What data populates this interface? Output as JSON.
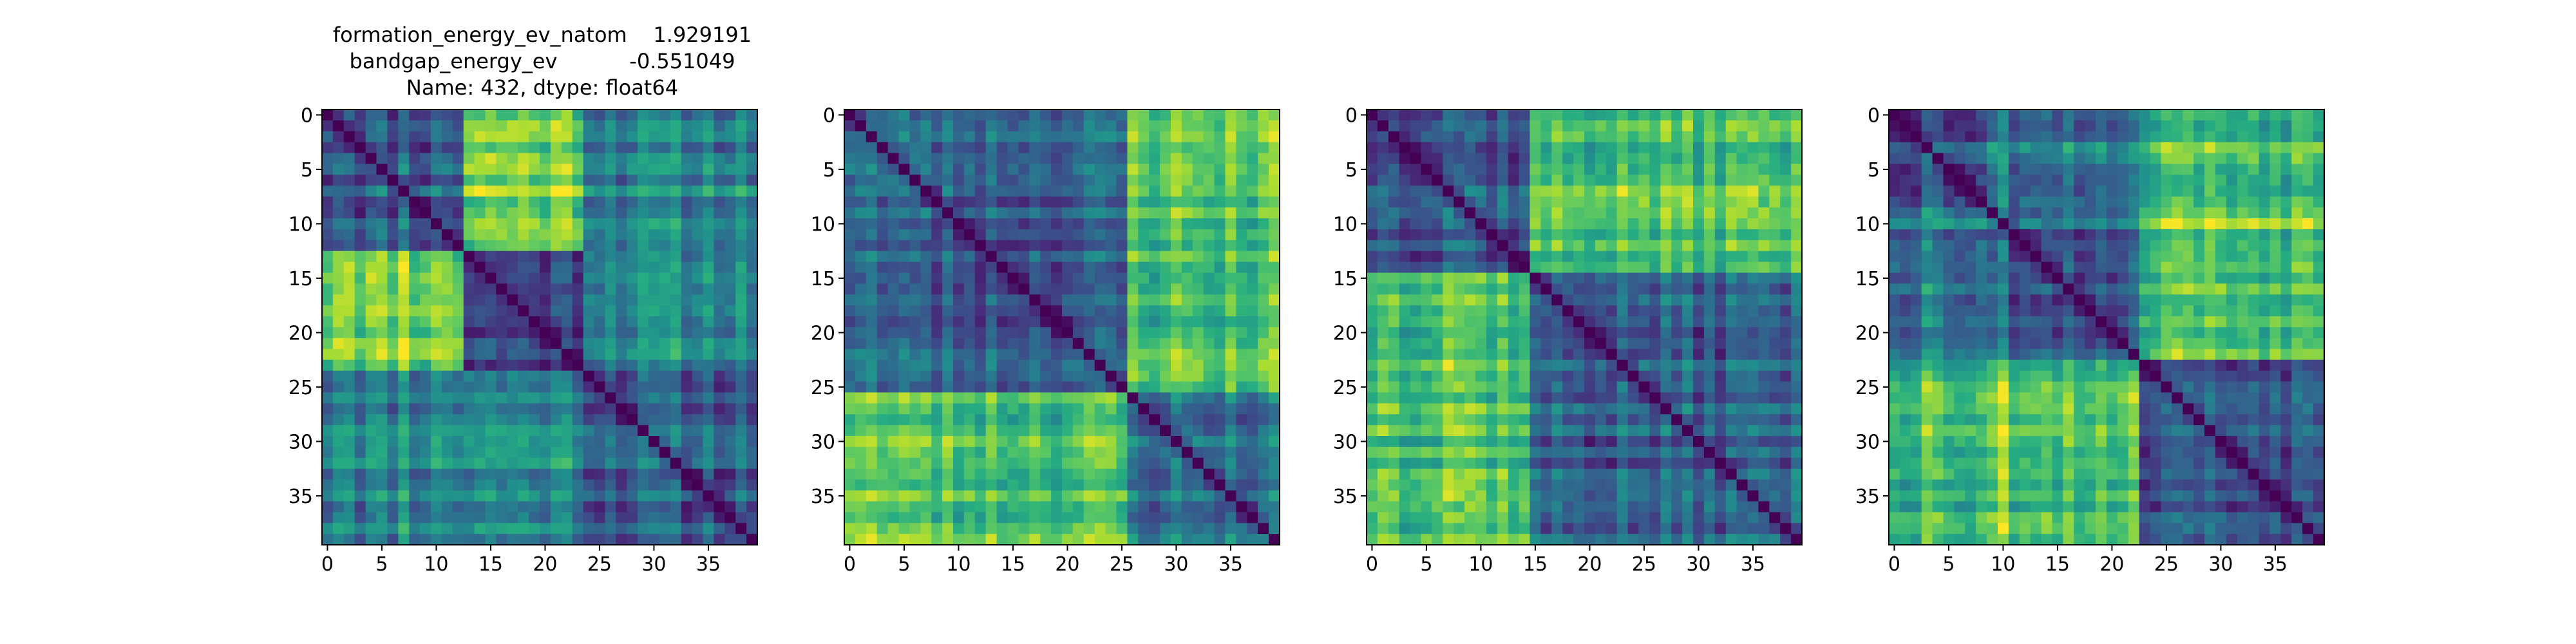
{
  "title_lines": [
    "formation_energy_ev_natom    1.929191",
    "bandgap_energy_ev           -0.551049",
    "Name: 432, dtype: float64"
  ],
  "chart_data": [
    {
      "type": "heatmap",
      "n": 40,
      "colormap": "viridis",
      "xticks": [
        0,
        5,
        10,
        15,
        20,
        25,
        30,
        35
      ],
      "yticks": [
        0,
        5,
        10,
        15,
        20,
        25,
        30,
        35
      ],
      "diagonal": 0,
      "groups": [
        {
          "start": 0,
          "end": 13,
          "level": 0.28
        },
        {
          "start": 13,
          "end": 24,
          "level": 0.22
        },
        {
          "start": 24,
          "end": 40,
          "level": 0.32
        }
      ],
      "cross_levels": [
        [
          0.28,
          0.8,
          0.45
        ],
        [
          0.8,
          0.22,
          0.48
        ],
        [
          0.45,
          0.48,
          0.32
        ]
      ],
      "bright_columns": [
        1,
        2,
        7,
        11
      ],
      "noise_seed": 11
    },
    {
      "type": "heatmap",
      "n": 40,
      "colormap": "viridis",
      "xticks": [
        0,
        5,
        10,
        15,
        20,
        25,
        30,
        35
      ],
      "yticks": [
        0,
        5,
        10,
        15,
        20,
        25,
        30,
        35
      ],
      "diagonal": 0,
      "groups": [
        {
          "start": 0,
          "end": 26,
          "level": 0.3
        },
        {
          "start": 26,
          "end": 40,
          "level": 0.38
        }
      ],
      "cross_levels": [
        [
          0.3,
          0.72
        ],
        [
          0.72,
          0.38
        ]
      ],
      "bright_columns": [
        0,
        1,
        2,
        6
      ],
      "noise_seed": 23
    },
    {
      "type": "heatmap",
      "n": 40,
      "colormap": "viridis",
      "xticks": [
        0,
        5,
        10,
        15,
        20,
        25,
        30,
        35
      ],
      "yticks": [
        0,
        5,
        10,
        15,
        20,
        25,
        30,
        35
      ],
      "diagonal": 0,
      "groups": [
        {
          "start": 0,
          "end": 15,
          "level": 0.3
        },
        {
          "start": 15,
          "end": 40,
          "level": 0.3
        }
      ],
      "cross_levels": [
        [
          0.3,
          0.72
        ],
        [
          0.72,
          0.3
        ]
      ],
      "bright_columns": [
        2,
        7,
        8,
        36
      ],
      "noise_seed": 37
    },
    {
      "type": "heatmap",
      "n": 40,
      "colormap": "viridis",
      "xticks": [
        0,
        5,
        10,
        15,
        20,
        25,
        30,
        35
      ],
      "yticks": [
        0,
        5,
        10,
        15,
        20,
        25,
        30,
        35
      ],
      "diagonal": 0,
      "groups": [
        {
          "start": 0,
          "end": 9,
          "level": 0.28
        },
        {
          "start": 9,
          "end": 23,
          "level": 0.3
        },
        {
          "start": 23,
          "end": 40,
          "level": 0.3
        }
      ],
      "cross_levels": [
        [
          0.28,
          0.4,
          0.7
        ],
        [
          0.4,
          0.3,
          0.74
        ],
        [
          0.7,
          0.74,
          0.3
        ]
      ],
      "bright_columns": [
        3,
        10,
        14,
        27
      ],
      "noise_seed": 53
    }
  ]
}
